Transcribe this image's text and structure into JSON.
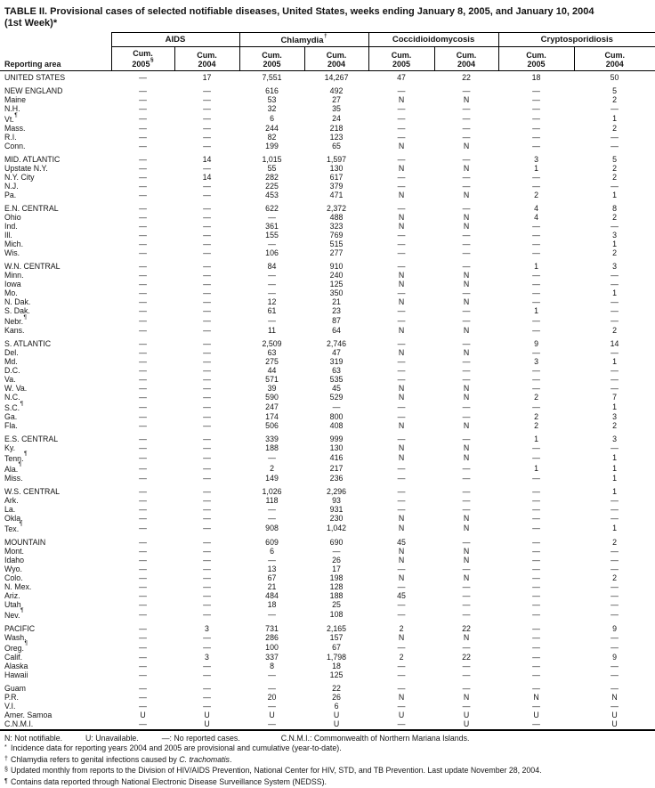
{
  "title": {
    "line1": "TABLE II. Provisional cases of selected notifiable diseases, United States, weeks ending January 8, 2005, and January 10, 2004",
    "line2": "(1st Week)*"
  },
  "header": {
    "reporting_area": "Reporting area",
    "groups": [
      {
        "name": "AIDS",
        "sup": "",
        "cols": [
          {
            "line1": "Cum.",
            "line2": "2005",
            "sup": "§"
          },
          {
            "line1": "Cum.",
            "line2": "2004",
            "sup": ""
          }
        ]
      },
      {
        "name": "Chlamydia",
        "sup": "†",
        "cols": [
          {
            "line1": "Cum.",
            "line2": "2005",
            "sup": ""
          },
          {
            "line1": "Cum.",
            "line2": "2004",
            "sup": ""
          }
        ]
      },
      {
        "name": "Coccidioidomycosis",
        "sup": "",
        "cols": [
          {
            "line1": "Cum.",
            "line2": "2005",
            "sup": ""
          },
          {
            "line1": "Cum.",
            "line2": "2004",
            "sup": ""
          }
        ]
      },
      {
        "name": "Cryptosporidiosis",
        "sup": "",
        "cols": [
          {
            "line1": "Cum.",
            "line2": "2005",
            "sup": ""
          },
          {
            "line1": "Cum.",
            "line2": "2004",
            "sup": ""
          }
        ]
      }
    ]
  },
  "rows": [
    {
      "label": "UNITED STATES",
      "sup": "",
      "gap_before": false,
      "values": [
        "—",
        "17",
        "7,551",
        "14,267",
        "47",
        "22",
        "18",
        "50"
      ]
    },
    {
      "label": "NEW ENGLAND",
      "sup": "",
      "gap_before": true,
      "values": [
        "—",
        "—",
        "616",
        "492",
        "—",
        "—",
        "—",
        "5"
      ]
    },
    {
      "label": "Maine",
      "sup": "",
      "gap_before": false,
      "values": [
        "—",
        "—",
        "53",
        "27",
        "N",
        "N",
        "—",
        "2"
      ]
    },
    {
      "label": "N.H.",
      "sup": "",
      "gap_before": false,
      "values": [
        "—",
        "—",
        "32",
        "35",
        "—",
        "—",
        "—",
        "—"
      ]
    },
    {
      "label": "Vt.",
      "sup": "¶",
      "gap_before": false,
      "values": [
        "—",
        "—",
        "6",
        "24",
        "—",
        "—",
        "—",
        "1"
      ]
    },
    {
      "label": "Mass.",
      "sup": "",
      "gap_before": false,
      "values": [
        "—",
        "—",
        "244",
        "218",
        "—",
        "—",
        "—",
        "2"
      ]
    },
    {
      "label": "R.I.",
      "sup": "",
      "gap_before": false,
      "values": [
        "—",
        "—",
        "82",
        "123",
        "—",
        "—",
        "—",
        "—"
      ]
    },
    {
      "label": "Conn.",
      "sup": "",
      "gap_before": false,
      "values": [
        "—",
        "—",
        "199",
        "65",
        "N",
        "N",
        "—",
        "—"
      ]
    },
    {
      "label": "MID. ATLANTIC",
      "sup": "",
      "gap_before": true,
      "values": [
        "—",
        "14",
        "1,015",
        "1,597",
        "—",
        "—",
        "3",
        "5"
      ]
    },
    {
      "label": "Upstate N.Y.",
      "sup": "",
      "gap_before": false,
      "values": [
        "—",
        "—",
        "55",
        "130",
        "N",
        "N",
        "1",
        "2"
      ]
    },
    {
      "label": "N.Y. City",
      "sup": "",
      "gap_before": false,
      "values": [
        "—",
        "14",
        "282",
        "617",
        "—",
        "—",
        "—",
        "2"
      ]
    },
    {
      "label": "N.J.",
      "sup": "",
      "gap_before": false,
      "values": [
        "—",
        "—",
        "225",
        "379",
        "—",
        "—",
        "—",
        "—"
      ]
    },
    {
      "label": "Pa.",
      "sup": "",
      "gap_before": false,
      "values": [
        "—",
        "—",
        "453",
        "471",
        "N",
        "N",
        "2",
        "1"
      ]
    },
    {
      "label": "E.N. CENTRAL",
      "sup": "",
      "gap_before": true,
      "values": [
        "—",
        "—",
        "622",
        "2,372",
        "—",
        "—",
        "4",
        "8"
      ]
    },
    {
      "label": "Ohio",
      "sup": "",
      "gap_before": false,
      "values": [
        "—",
        "—",
        "—",
        "488",
        "N",
        "N",
        "4",
        "2"
      ]
    },
    {
      "label": "Ind.",
      "sup": "",
      "gap_before": false,
      "values": [
        "—",
        "—",
        "361",
        "323",
        "N",
        "N",
        "—",
        "—"
      ]
    },
    {
      "label": "Ill.",
      "sup": "",
      "gap_before": false,
      "values": [
        "—",
        "—",
        "155",
        "769",
        "—",
        "—",
        "—",
        "3"
      ]
    },
    {
      "label": "Mich.",
      "sup": "",
      "gap_before": false,
      "values": [
        "—",
        "—",
        "—",
        "515",
        "—",
        "—",
        "—",
        "1"
      ]
    },
    {
      "label": "Wis.",
      "sup": "",
      "gap_before": false,
      "values": [
        "—",
        "—",
        "106",
        "277",
        "—",
        "—",
        "—",
        "2"
      ]
    },
    {
      "label": "W.N. CENTRAL",
      "sup": "",
      "gap_before": true,
      "values": [
        "—",
        "—",
        "84",
        "910",
        "—",
        "—",
        "1",
        "3"
      ]
    },
    {
      "label": "Minn.",
      "sup": "",
      "gap_before": false,
      "values": [
        "—",
        "—",
        "—",
        "240",
        "N",
        "N",
        "—",
        "—"
      ]
    },
    {
      "label": "Iowa",
      "sup": "",
      "gap_before": false,
      "values": [
        "—",
        "—",
        "—",
        "125",
        "N",
        "N",
        "—",
        "—"
      ]
    },
    {
      "label": "Mo.",
      "sup": "",
      "gap_before": false,
      "values": [
        "—",
        "—",
        "—",
        "350",
        "—",
        "—",
        "—",
        "1"
      ]
    },
    {
      "label": "N. Dak.",
      "sup": "",
      "gap_before": false,
      "values": [
        "—",
        "—",
        "12",
        "21",
        "N",
        "N",
        "—",
        "—"
      ]
    },
    {
      "label": "S. Dak.",
      "sup": "",
      "gap_before": false,
      "values": [
        "—",
        "—",
        "61",
        "23",
        "—",
        "—",
        "1",
        "—"
      ]
    },
    {
      "label": "Nebr.",
      "sup": "¶",
      "gap_before": false,
      "values": [
        "—",
        "—",
        "—",
        "87",
        "—",
        "—",
        "—",
        "—"
      ]
    },
    {
      "label": "Kans.",
      "sup": "",
      "gap_before": false,
      "values": [
        "—",
        "—",
        "11",
        "64",
        "N",
        "N",
        "—",
        "2"
      ]
    },
    {
      "label": "S. ATLANTIC",
      "sup": "",
      "gap_before": true,
      "values": [
        "—",
        "—",
        "2,509",
        "2,746",
        "—",
        "—",
        "9",
        "14"
      ]
    },
    {
      "label": "Del.",
      "sup": "",
      "gap_before": false,
      "values": [
        "—",
        "—",
        "63",
        "47",
        "N",
        "N",
        "—",
        "—"
      ]
    },
    {
      "label": "Md.",
      "sup": "",
      "gap_before": false,
      "values": [
        "—",
        "—",
        "275",
        "319",
        "—",
        "—",
        "3",
        "1"
      ]
    },
    {
      "label": "D.C.",
      "sup": "",
      "gap_before": false,
      "values": [
        "—",
        "—",
        "44",
        "63",
        "—",
        "—",
        "—",
        "—"
      ]
    },
    {
      "label": "Va.",
      "sup": "",
      "gap_before": false,
      "values": [
        "—",
        "—",
        "571",
        "535",
        "—",
        "—",
        "—",
        "—"
      ]
    },
    {
      "label": "W. Va.",
      "sup": "",
      "gap_before": false,
      "values": [
        "—",
        "—",
        "39",
        "45",
        "N",
        "N",
        "—",
        "—"
      ]
    },
    {
      "label": "N.C.",
      "sup": "",
      "gap_before": false,
      "values": [
        "—",
        "—",
        "590",
        "529",
        "N",
        "N",
        "2",
        "7"
      ]
    },
    {
      "label": "S.C.",
      "sup": "¶",
      "gap_before": false,
      "values": [
        "—",
        "—",
        "247",
        "—",
        "—",
        "—",
        "—",
        "1"
      ]
    },
    {
      "label": "Ga.",
      "sup": "",
      "gap_before": false,
      "values": [
        "—",
        "—",
        "174",
        "800",
        "—",
        "—",
        "2",
        "3"
      ]
    },
    {
      "label": "Fla.",
      "sup": "",
      "gap_before": false,
      "values": [
        "—",
        "—",
        "506",
        "408",
        "N",
        "N",
        "2",
        "2"
      ]
    },
    {
      "label": "E.S. CENTRAL",
      "sup": "",
      "gap_before": true,
      "values": [
        "—",
        "—",
        "339",
        "999",
        "—",
        "—",
        "1",
        "3"
      ]
    },
    {
      "label": "Ky.",
      "sup": "",
      "gap_before": false,
      "values": [
        "—",
        "—",
        "188",
        "130",
        "N",
        "N",
        "—",
        "—"
      ]
    },
    {
      "label": "Tenn.",
      "sup": "¶",
      "gap_before": false,
      "values": [
        "—",
        "—",
        "—",
        "416",
        "N",
        "N",
        "—",
        "1"
      ]
    },
    {
      "label": "Ala.",
      "sup": "¶",
      "gap_before": false,
      "values": [
        "—",
        "—",
        "2",
        "217",
        "—",
        "—",
        "1",
        "1"
      ]
    },
    {
      "label": "Miss.",
      "sup": "",
      "gap_before": false,
      "values": [
        "—",
        "—",
        "149",
        "236",
        "—",
        "—",
        "—",
        "1"
      ]
    },
    {
      "label": "W.S. CENTRAL",
      "sup": "",
      "gap_before": true,
      "values": [
        "—",
        "—",
        "1,026",
        "2,296",
        "—",
        "—",
        "—",
        "1"
      ]
    },
    {
      "label": "Ark.",
      "sup": "",
      "gap_before": false,
      "values": [
        "—",
        "—",
        "118",
        "93",
        "—",
        "—",
        "—",
        "—"
      ]
    },
    {
      "label": "La.",
      "sup": "",
      "gap_before": false,
      "values": [
        "—",
        "—",
        "—",
        "931",
        "—",
        "—",
        "—",
        "—"
      ]
    },
    {
      "label": "Okla.",
      "sup": "",
      "gap_before": false,
      "values": [
        "—",
        "—",
        "—",
        "230",
        "N",
        "N",
        "—",
        "—"
      ]
    },
    {
      "label": "Tex.",
      "sup": "¶",
      "gap_before": false,
      "values": [
        "—",
        "—",
        "908",
        "1,042",
        "N",
        "N",
        "—",
        "1"
      ]
    },
    {
      "label": "MOUNTAIN",
      "sup": "",
      "gap_before": true,
      "values": [
        "—",
        "—",
        "609",
        "690",
        "45",
        "—",
        "—",
        "2"
      ]
    },
    {
      "label": "Mont.",
      "sup": "",
      "gap_before": false,
      "values": [
        "—",
        "—",
        "6",
        "—",
        "N",
        "N",
        "—",
        "—"
      ]
    },
    {
      "label": "Idaho",
      "sup": "",
      "gap_before": false,
      "values": [
        "—",
        "—",
        "—",
        "26",
        "N",
        "N",
        "—",
        "—"
      ]
    },
    {
      "label": "Wyo.",
      "sup": "",
      "gap_before": false,
      "values": [
        "—",
        "—",
        "13",
        "17",
        "—",
        "—",
        "—",
        "—"
      ]
    },
    {
      "label": "Colo.",
      "sup": "",
      "gap_before": false,
      "values": [
        "—",
        "—",
        "67",
        "198",
        "N",
        "N",
        "—",
        "2"
      ]
    },
    {
      "label": "N. Mex.",
      "sup": "",
      "gap_before": false,
      "values": [
        "—",
        "—",
        "21",
        "128",
        "—",
        "—",
        "—",
        "—"
      ]
    },
    {
      "label": "Ariz.",
      "sup": "",
      "gap_before": false,
      "values": [
        "—",
        "—",
        "484",
        "188",
        "45",
        "—",
        "—",
        "—"
      ]
    },
    {
      "label": "Utah",
      "sup": "",
      "gap_before": false,
      "values": [
        "—",
        "—",
        "18",
        "25",
        "—",
        "—",
        "—",
        "—"
      ]
    },
    {
      "label": "Nev.",
      "sup": "¶",
      "gap_before": false,
      "values": [
        "—",
        "—",
        "—",
        "108",
        "—",
        "—",
        "—",
        "—"
      ]
    },
    {
      "label": "PACIFIC",
      "sup": "",
      "gap_before": true,
      "values": [
        "—",
        "3",
        "731",
        "2,165",
        "2",
        "22",
        "—",
        "9"
      ]
    },
    {
      "label": "Wash.",
      "sup": "",
      "gap_before": false,
      "values": [
        "—",
        "—",
        "286",
        "157",
        "N",
        "N",
        "—",
        "—"
      ]
    },
    {
      "label": "Oreg.",
      "sup": "¶",
      "gap_before": false,
      "values": [
        "—",
        "—",
        "100",
        "67",
        "—",
        "—",
        "—",
        "—"
      ]
    },
    {
      "label": "Calif.",
      "sup": "",
      "gap_before": false,
      "values": [
        "—",
        "3",
        "337",
        "1,798",
        "2",
        "22",
        "—",
        "9"
      ]
    },
    {
      "label": "Alaska",
      "sup": "",
      "gap_before": false,
      "values": [
        "—",
        "—",
        "8",
        "18",
        "—",
        "—",
        "—",
        "—"
      ]
    },
    {
      "label": "Hawaii",
      "sup": "",
      "gap_before": false,
      "values": [
        "—",
        "—",
        "—",
        "125",
        "—",
        "—",
        "—",
        "—"
      ]
    },
    {
      "label": "Guam",
      "sup": "",
      "gap_before": true,
      "values": [
        "—",
        "—",
        "—",
        "22",
        "—",
        "—",
        "—",
        "—"
      ]
    },
    {
      "label": "P.R.",
      "sup": "",
      "gap_before": false,
      "values": [
        "—",
        "—",
        "20",
        "26",
        "N",
        "N",
        "N",
        "N"
      ]
    },
    {
      "label": "V.I.",
      "sup": "",
      "gap_before": false,
      "values": [
        "—",
        "—",
        "—",
        "6",
        "—",
        "—",
        "—",
        "—"
      ]
    },
    {
      "label": "Amer. Samoa",
      "sup": "",
      "gap_before": false,
      "values": [
        "U",
        "U",
        "U",
        "U",
        "U",
        "U",
        "U",
        "U"
      ]
    },
    {
      "label": "C.N.M.I.",
      "sup": "",
      "gap_before": false,
      "values": [
        "—",
        "U",
        "—",
        "U",
        "—",
        "U",
        "—",
        "U"
      ]
    }
  ],
  "footnotes": {
    "legend": [
      "N: Not notifiable.",
      "U: Unavailable.",
      "—: No reported cases.",
      "C.N.M.I.: Commonwealth of Northern Mariana Islands."
    ],
    "notes": [
      {
        "sym": "*",
        "pre": "Incidence data for reporting years 2004 and 2005 are provisional and cumulative (year-to-date).",
        "italic": "",
        "post": ""
      },
      {
        "sym": "†",
        "pre": "Chlamydia refers to genital infections caused by ",
        "italic": "C. trachomatis",
        "post": "."
      },
      {
        "sym": "§",
        "pre": "Updated monthly from reports to the Division of HIV/AIDS Prevention, National Center for HIV, STD, and TB Prevention. Last update November 28, 2004.",
        "italic": "",
        "post": ""
      },
      {
        "sym": "¶",
        "pre": "Contains data reported through National Electronic Disease Surveillance System (NEDSS).",
        "italic": "",
        "post": ""
      }
    ]
  }
}
